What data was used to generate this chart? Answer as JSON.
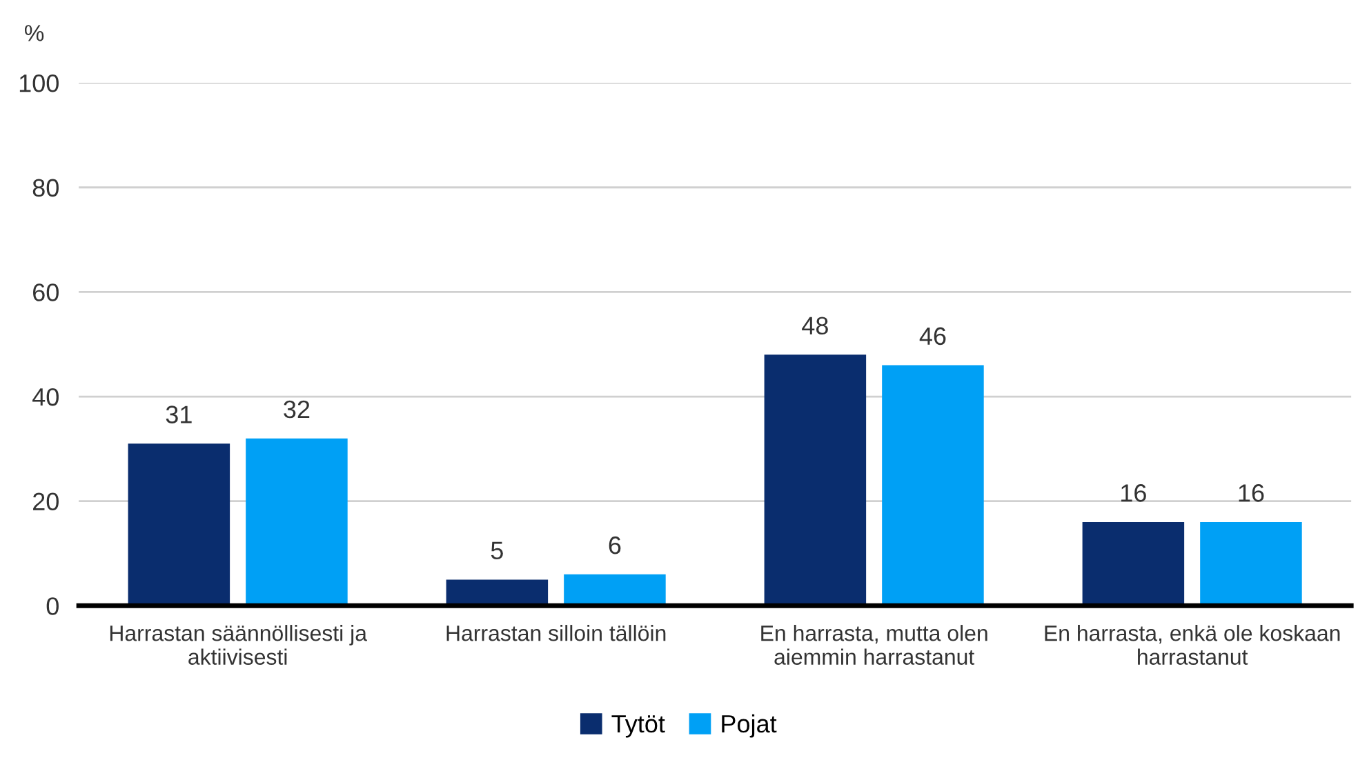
{
  "chart_data": {
    "type": "bar",
    "ylabel": "%",
    "categories": [
      "Harrastan säännöllisesti ja\naktiivisesti",
      "Harrastan silloin tällöin",
      "En harrasta, mutta olen\naiemmin harrastanut",
      "En harrasta, enkä ole koskaan\nharrastanut"
    ],
    "series": [
      {
        "name": "Tytöt",
        "color": "#0a2d6e",
        "values": [
          31,
          5,
          48,
          16
        ]
      },
      {
        "name": "Pojat",
        "color": "#00a0f5",
        "values": [
          32,
          6,
          46,
          16
        ]
      }
    ],
    "ylim": [
      0,
      100
    ],
    "yticks": [
      0,
      20,
      40,
      60,
      80,
      100
    ],
    "grid": "y",
    "legend": "bottom",
    "data_labels": true
  }
}
